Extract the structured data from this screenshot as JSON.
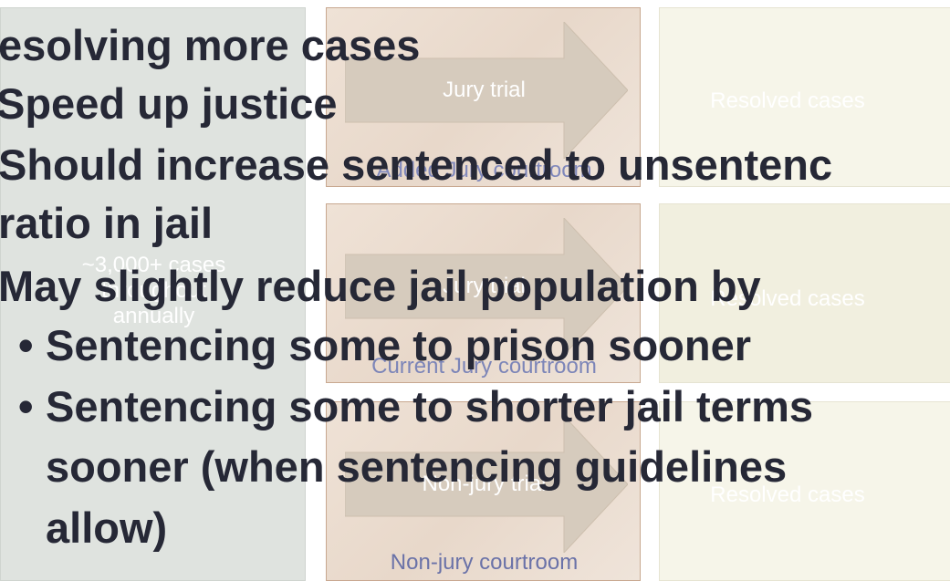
{
  "left_box": {
    "lines": [
      "~3,000+ cases",
      "throughout",
      "annually"
    ]
  },
  "middle_boxes": [
    {
      "arrow_label": "Jury trial",
      "courtroom": "Added Jury courtroom"
    },
    {
      "arrow_label": "Jury trial",
      "courtroom": "Current Jury courtroom"
    },
    {
      "arrow_label": "Non-jury trial",
      "courtroom": "Non-jury courtroom"
    }
  ],
  "right_boxes": [
    "Resolved cases",
    "Resolved cases",
    "Resolved cases"
  ],
  "bullets": {
    "lines": [
      "esolving more cases",
      "Speed up justice",
      "Should increase sentenced to unsentenc",
      "ratio in jail",
      "May slightly reduce jail population by"
    ],
    "sub_lines": [
      "Sentencing some to prison sooner",
      "Sentencing some to shorter jail terms",
      "sooner (when sentencing guidelines",
      "allow)"
    ]
  }
}
